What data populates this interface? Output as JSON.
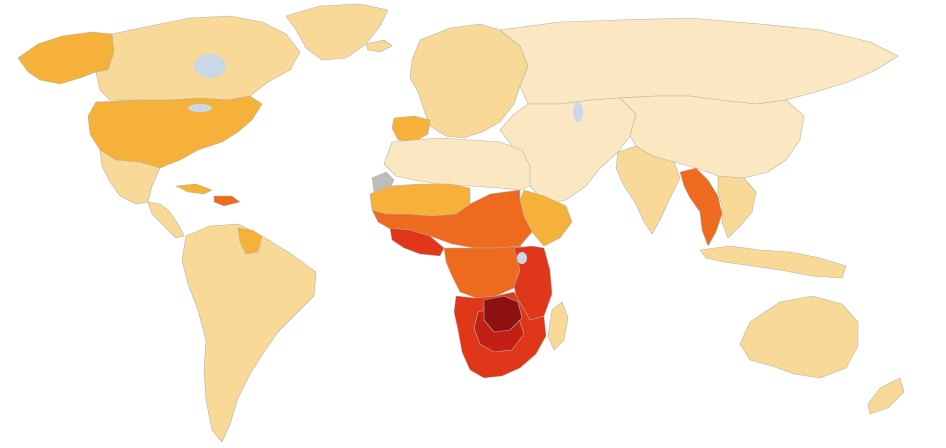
{
  "map": {
    "kind": "choropleth-world-map",
    "projection": "equirectangular-like",
    "background": "#ffffff",
    "border_color": "#b9b2a6",
    "palette": {
      "level_1": "#fbe7c1",
      "level_2": "#f9d998",
      "level_3": "#f6b13b",
      "level_4": "#ee6a1f",
      "level_5": "#e0371a",
      "level_6": "#c41f14",
      "level_7": "#8f1010",
      "no_data": "#bdbdbd",
      "water": "#c9d7e6"
    },
    "regions": [
      {
        "id": "alaska",
        "level": 3
      },
      {
        "id": "canada",
        "level": 2
      },
      {
        "id": "greenland",
        "level": 2
      },
      {
        "id": "usa",
        "level": 3
      },
      {
        "id": "mexico",
        "level": 2
      },
      {
        "id": "central-america",
        "level": 2
      },
      {
        "id": "caribbean-haiti-dr",
        "level": 4
      },
      {
        "id": "cuba",
        "level": 3
      },
      {
        "id": "guyana-suriname",
        "level": 3
      },
      {
        "id": "south-america",
        "level": 2
      },
      {
        "id": "iceland",
        "level": 2
      },
      {
        "id": "europe",
        "level": 2
      },
      {
        "id": "iberia",
        "level": 3
      },
      {
        "id": "russia",
        "level": 1
      },
      {
        "id": "central-asia-middle-east",
        "level": 1
      },
      {
        "id": "north-africa",
        "level": 1
      },
      {
        "id": "west-sahel",
        "level": 3
      },
      {
        "id": "west-africa",
        "level": 4
      },
      {
        "id": "west-africa-south",
        "level": 5
      },
      {
        "id": "central-east-africa",
        "level": 4
      },
      {
        "id": "horn-of-africa",
        "level": 3
      },
      {
        "id": "east-africa",
        "level": 5
      },
      {
        "id": "southern-africa-outer",
        "level": 5
      },
      {
        "id": "southern-africa-core",
        "level": 6
      },
      {
        "id": "zimbabwe-zambia",
        "level": 7
      },
      {
        "id": "madagascar",
        "level": 2
      },
      {
        "id": "india",
        "level": 2
      },
      {
        "id": "myanmar-thailand",
        "level": 4
      },
      {
        "id": "southeast-asia",
        "level": 2
      },
      {
        "id": "china-mongolia",
        "level": 1
      },
      {
        "id": "indonesia-png",
        "level": 2
      },
      {
        "id": "australia",
        "level": 2
      },
      {
        "id": "new-zealand",
        "level": 2
      },
      {
        "id": "western-sahara",
        "level": "no_data"
      }
    ]
  }
}
